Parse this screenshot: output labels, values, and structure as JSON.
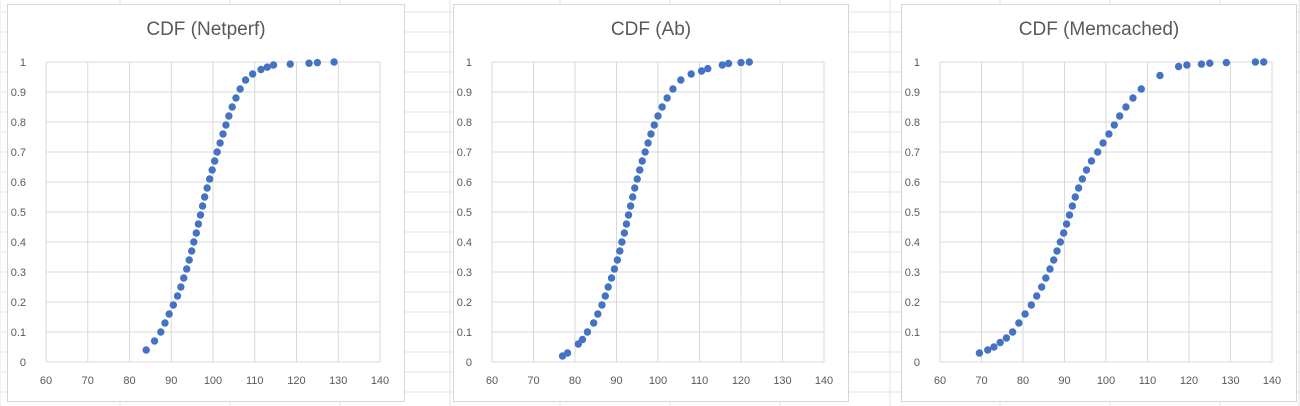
{
  "marker_color": "#4472C4",
  "gridline_color": "#d9d9d9",
  "chart_data": [
    {
      "type": "scatter",
      "title": "CDF (Netperf)",
      "xlabel": "",
      "ylabel": "",
      "xlim": [
        60,
        140
      ],
      "ylim": [
        0,
        1
      ],
      "xticks": [
        60,
        70,
        80,
        90,
        100,
        110,
        120,
        130,
        140
      ],
      "yticks": [
        0,
        0.1,
        0.2,
        0.3,
        0.4,
        0.5,
        0.6,
        0.7,
        0.8,
        0.9,
        1
      ],
      "grid": true,
      "legend": "none",
      "points": [
        [
          84,
          0.04
        ],
        [
          86,
          0.07
        ],
        [
          87.5,
          0.1
        ],
        [
          88.5,
          0.13
        ],
        [
          89.5,
          0.16
        ],
        [
          90.5,
          0.19
        ],
        [
          91.5,
          0.22
        ],
        [
          92.3,
          0.25
        ],
        [
          93,
          0.28
        ],
        [
          93.7,
          0.31
        ],
        [
          94.3,
          0.34
        ],
        [
          94.9,
          0.37
        ],
        [
          95.4,
          0.4
        ],
        [
          96,
          0.43
        ],
        [
          96.5,
          0.46
        ],
        [
          97,
          0.49
        ],
        [
          97.5,
          0.52
        ],
        [
          98,
          0.55
        ],
        [
          98.6,
          0.58
        ],
        [
          99.2,
          0.61
        ],
        [
          99.8,
          0.64
        ],
        [
          100.4,
          0.67
        ],
        [
          101,
          0.7
        ],
        [
          101.7,
          0.73
        ],
        [
          102.4,
          0.76
        ],
        [
          103.1,
          0.79
        ],
        [
          103.8,
          0.82
        ],
        [
          104.6,
          0.85
        ],
        [
          105.5,
          0.88
        ],
        [
          106.5,
          0.91
        ],
        [
          107.8,
          0.94
        ],
        [
          109.5,
          0.96
        ],
        [
          111.5,
          0.975
        ],
        [
          113,
          0.983
        ],
        [
          114.5,
          0.99
        ],
        [
          118.5,
          0.993
        ],
        [
          123,
          0.996
        ],
        [
          125,
          0.998
        ],
        [
          129,
          1
        ]
      ]
    },
    {
      "type": "scatter",
      "title": "CDF (Ab)",
      "xlabel": "",
      "ylabel": "",
      "xlim": [
        60,
        140
      ],
      "ylim": [
        0,
        1
      ],
      "xticks": [
        60,
        70,
        80,
        90,
        100,
        110,
        120,
        130,
        140
      ],
      "yticks": [
        0,
        0.1,
        0.2,
        0.3,
        0.4,
        0.5,
        0.6,
        0.7,
        0.8,
        0.9,
        1
      ],
      "grid": true,
      "legend": "none",
      "points": [
        [
          77,
          0.02
        ],
        [
          78.2,
          0.03
        ],
        [
          80.8,
          0.06
        ],
        [
          81.8,
          0.075
        ],
        [
          83,
          0.1
        ],
        [
          84.5,
          0.13
        ],
        [
          85.5,
          0.16
        ],
        [
          86.5,
          0.19
        ],
        [
          87.3,
          0.22
        ],
        [
          88,
          0.25
        ],
        [
          88.8,
          0.28
        ],
        [
          89.5,
          0.31
        ],
        [
          90.2,
          0.34
        ],
        [
          90.8,
          0.37
        ],
        [
          91.3,
          0.4
        ],
        [
          91.9,
          0.43
        ],
        [
          92.4,
          0.46
        ],
        [
          92.9,
          0.49
        ],
        [
          93.4,
          0.52
        ],
        [
          93.9,
          0.55
        ],
        [
          94.4,
          0.58
        ],
        [
          95,
          0.61
        ],
        [
          95.6,
          0.64
        ],
        [
          96.2,
          0.67
        ],
        [
          96.9,
          0.7
        ],
        [
          97.6,
          0.73
        ],
        [
          98.3,
          0.76
        ],
        [
          99.1,
          0.79
        ],
        [
          100,
          0.82
        ],
        [
          101,
          0.85
        ],
        [
          102.2,
          0.88
        ],
        [
          103.6,
          0.91
        ],
        [
          105.5,
          0.94
        ],
        [
          108,
          0.96
        ],
        [
          110.5,
          0.97
        ],
        [
          112,
          0.978
        ],
        [
          115.5,
          0.99
        ],
        [
          117,
          0.995
        ],
        [
          120,
          0.998
        ],
        [
          122,
          1
        ]
      ]
    },
    {
      "type": "scatter",
      "title": "CDF (Memcached)",
      "xlabel": "",
      "ylabel": "",
      "xlim": [
        60,
        140
      ],
      "ylim": [
        0,
        1
      ],
      "xticks": [
        60,
        70,
        80,
        90,
        100,
        110,
        120,
        130,
        140
      ],
      "yticks": [
        0,
        0.1,
        0.2,
        0.3,
        0.4,
        0.5,
        0.6,
        0.7,
        0.8,
        0.9,
        1
      ],
      "grid": true,
      "legend": "none",
      "points": [
        [
          69.5,
          0.03
        ],
        [
          71.5,
          0.04
        ],
        [
          73,
          0.05
        ],
        [
          74.5,
          0.065
        ],
        [
          76,
          0.08
        ],
        [
          77.5,
          0.1
        ],
        [
          79,
          0.13
        ],
        [
          80.5,
          0.16
        ],
        [
          82,
          0.19
        ],
        [
          83.3,
          0.22
        ],
        [
          84.5,
          0.25
        ],
        [
          85.5,
          0.28
        ],
        [
          86.5,
          0.31
        ],
        [
          87.4,
          0.34
        ],
        [
          88.2,
          0.37
        ],
        [
          89,
          0.4
        ],
        [
          89.8,
          0.43
        ],
        [
          90.5,
          0.46
        ],
        [
          91.2,
          0.49
        ],
        [
          91.9,
          0.52
        ],
        [
          92.6,
          0.55
        ],
        [
          93.4,
          0.58
        ],
        [
          94.3,
          0.61
        ],
        [
          95.3,
          0.64
        ],
        [
          96.5,
          0.67
        ],
        [
          98,
          0.7
        ],
        [
          99.3,
          0.73
        ],
        [
          100.7,
          0.76
        ],
        [
          102,
          0.79
        ],
        [
          103.3,
          0.82
        ],
        [
          104.8,
          0.85
        ],
        [
          106.5,
          0.88
        ],
        [
          108.5,
          0.91
        ],
        [
          113,
          0.955
        ],
        [
          117.5,
          0.985
        ],
        [
          119.5,
          0.99
        ],
        [
          123,
          0.993
        ],
        [
          125,
          0.996
        ],
        [
          129,
          0.998
        ],
        [
          136,
          1
        ],
        [
          138,
          1
        ]
      ]
    }
  ]
}
